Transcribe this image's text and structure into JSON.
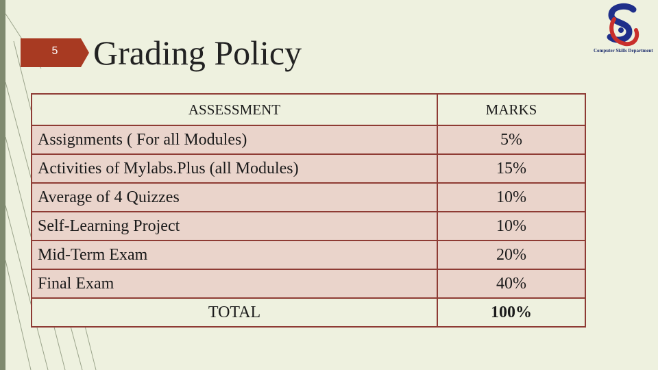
{
  "slide": {
    "number": "5",
    "title": "Grading Policy"
  },
  "logo": {
    "icon": "department-logo-icon",
    "caption": "Computer Skills Department"
  },
  "table": {
    "headers": {
      "assessment": "ASSESSMENT",
      "marks": "MARKS"
    },
    "rows": [
      {
        "assessment": "Assignments ( For all Modules)",
        "marks": "5%"
      },
      {
        "assessment": "Activities of Mylabs.Plus (all Modules)",
        "marks": "15%"
      },
      {
        "assessment": "Average of 4 Quizzes",
        "marks": "10%"
      },
      {
        "assessment": "Self-Learning Project",
        "marks": "10%"
      },
      {
        "assessment": "Mid-Term Exam",
        "marks": "20%"
      },
      {
        "assessment": "Final Exam",
        "marks": "40%"
      }
    ],
    "total": {
      "label": "TOTAL",
      "value": "100%"
    }
  },
  "colors": {
    "background": "#eef1df",
    "row_fill": "#ead4cb",
    "border": "#8e3b34",
    "badge": "#a83a22",
    "logo_blue": "#1f2f8a",
    "logo_red": "#c9302c"
  }
}
